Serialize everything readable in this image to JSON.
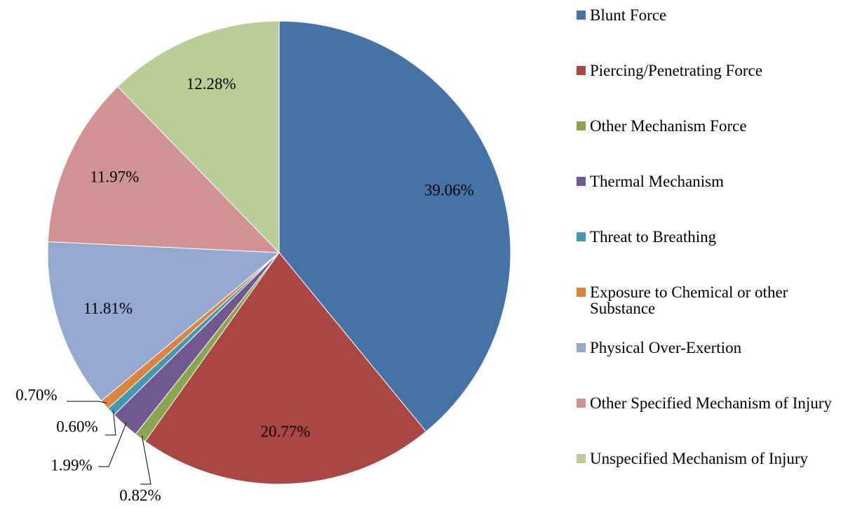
{
  "chart_data": {
    "type": "pie",
    "categories": [
      "Blunt Force",
      "Piercing/Penetrating Force",
      "Other Mechanism Force",
      "Thermal Mechanism",
      "Threat to Breathing",
      "Exposure to Chemical or other Substance",
      "Physical Over-Exertion",
      "Other Specified Mechanism of Injury",
      "Unspecified Mechanism of Injury"
    ],
    "values": [
      39.06,
      20.77,
      0.82,
      1.99,
      0.6,
      0.7,
      11.81,
      11.97,
      12.28
    ],
    "value_labels": [
      "39.06%",
      "20.77%",
      "0.82%",
      "1.99%",
      "0.60%",
      "0.70%",
      "11.81%",
      "11.97%",
      "12.28%"
    ],
    "colors": [
      "#4572a7",
      "#aa4643",
      "#89a54e",
      "#71588f",
      "#4198af",
      "#db843d",
      "#93a9cf",
      "#d19392",
      "#b9cd96"
    ],
    "legend": "right"
  }
}
